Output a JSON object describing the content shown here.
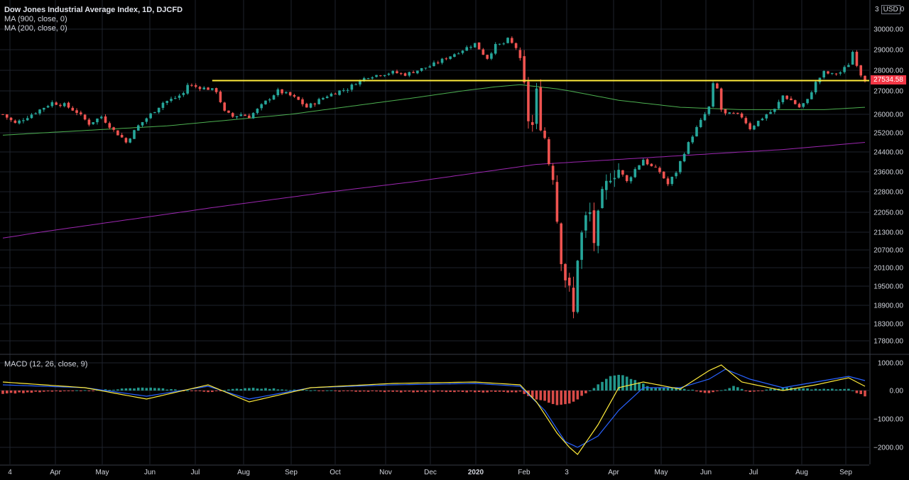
{
  "header": {
    "title": "Dow Jones Industrial Average Index, 1D, DJCFD",
    "ma1_label": "MA (900, close, 0)",
    "ma2_label": "MA (200, close, 0)",
    "macd_label": "MACD (12, 26, close, 9)",
    "currency_prefix": "3",
    "currency": "USD",
    "currency_suffix": "0"
  },
  "last_price": "27534.58",
  "colors": {
    "up": "#26a69a",
    "down": "#ef5350",
    "ma200": "#4caf50",
    "ma900": "#9c27b0",
    "resistance": "#ffeb3b",
    "macd": "#2962ff",
    "signal": "#ffeb3b",
    "hist_pos": "#26a69a",
    "hist_neg": "#ef5350"
  },
  "chart_data": {
    "type": "candlestick",
    "price_axis": {
      "ticks": [
        30000,
        29000,
        28000,
        27000,
        26000,
        25200,
        24400,
        23600,
        22800,
        22050,
        21300,
        20700,
        20100,
        19500,
        18900,
        18300,
        17800
      ],
      "labels": [
        "30000.00",
        "29000.00",
        "28000.00",
        "27000.00",
        "26000.00",
        "25200.00",
        "24400.00",
        "23600.00",
        "22800.00",
        "22050.00",
        "21300.00",
        "20700.00",
        "20100.00",
        "19500.00",
        "18900.00",
        "18300.00",
        "17800.00"
      ]
    },
    "time_axis": {
      "labels": [
        "4",
        "Apr",
        "May",
        "Jun",
        "Jul",
        "Aug",
        "Sep",
        "Oct",
        "Nov",
        "Dec",
        "2020",
        "Feb",
        "3",
        "Apr",
        "May",
        "Jun",
        "Jul",
        "Aug",
        "Sep"
      ],
      "bold": [
        false,
        false,
        false,
        false,
        false,
        false,
        false,
        false,
        false,
        false,
        true,
        false,
        false,
        false,
        false,
        false,
        false,
        false,
        false
      ]
    },
    "close_path": [
      [
        0,
        26000
      ],
      [
        3,
        25600
      ],
      [
        6,
        25900
      ],
      [
        9,
        26200
      ],
      [
        12,
        26500
      ],
      [
        15,
        26400
      ],
      [
        18,
        26100
      ],
      [
        21,
        25600
      ],
      [
        24,
        25900
      ],
      [
        27,
        25300
      ],
      [
        29,
        25000
      ],
      [
        30,
        24800
      ],
      [
        33,
        25500
      ],
      [
        36,
        26000
      ],
      [
        39,
        26500
      ],
      [
        42,
        26700
      ],
      [
        44,
        26900
      ],
      [
        45,
        27300
      ],
      [
        47,
        27200
      ],
      [
        50,
        27100
      ],
      [
        52,
        27000
      ],
      [
        54,
        26100
      ],
      [
        56,
        25900
      ],
      [
        58,
        26000
      ],
      [
        60,
        25900
      ],
      [
        62,
        26200
      ],
      [
        65,
        26700
      ],
      [
        67,
        27000
      ],
      [
        70,
        26800
      ],
      [
        72,
        26600
      ],
      [
        74,
        26300
      ],
      [
        76,
        26500
      ],
      [
        79,
        26800
      ],
      [
        82,
        27000
      ],
      [
        84,
        27100
      ],
      [
        86,
        27400
      ],
      [
        89,
        27700
      ],
      [
        92,
        27800
      ],
      [
        95,
        27900
      ],
      [
        98,
        27800
      ],
      [
        101,
        28000
      ],
      [
        104,
        28200
      ],
      [
        107,
        28500
      ],
      [
        110,
        28800
      ],
      [
        113,
        29100
      ],
      [
        115,
        29300
      ],
      [
        117,
        28800
      ],
      [
        118,
        28600
      ],
      [
        119,
        28900
      ],
      [
        120,
        29200
      ],
      [
        122,
        29300
      ],
      [
        123,
        29500
      ],
      [
        124,
        29300
      ],
      [
        125,
        29100
      ],
      [
        126,
        28300
      ],
      [
        127,
        27200
      ],
      [
        128,
        25800
      ],
      [
        129,
        25500
      ],
      [
        130,
        26900
      ],
      [
        131,
        25600
      ],
      [
        132,
        25000
      ],
      [
        133,
        24000
      ],
      [
        134,
        23500
      ],
      [
        135,
        21800
      ],
      [
        136,
        20500
      ],
      [
        137,
        19800
      ],
      [
        138,
        19300
      ],
      [
        139,
        18600
      ],
      [
        140,
        20500
      ],
      [
        141,
        21200
      ],
      [
        142,
        21800
      ],
      [
        143,
        22000
      ],
      [
        144,
        21000
      ],
      [
        145,
        21800
      ],
      [
        146,
        22600
      ],
      [
        148,
        23500
      ],
      [
        150,
        23700
      ],
      [
        152,
        23200
      ],
      [
        154,
        23700
      ],
      [
        156,
        24100
      ],
      [
        158,
        23800
      ],
      [
        160,
        23600
      ],
      [
        162,
        23100
      ],
      [
        164,
        23600
      ],
      [
        166,
        24400
      ],
      [
        168,
        25100
      ],
      [
        170,
        25700
      ],
      [
        172,
        26300
      ],
      [
        173,
        27300
      ],
      [
        174,
        27100
      ],
      [
        175,
        26200
      ],
      [
        176,
        26000
      ],
      [
        178,
        26000
      ],
      [
        180,
        25900
      ],
      [
        182,
        25400
      ],
      [
        184,
        25700
      ],
      [
        186,
        26000
      ],
      [
        188,
        26200
      ],
      [
        190,
        26800
      ],
      [
        192,
        26600
      ],
      [
        194,
        26300
      ],
      [
        196,
        26600
      ],
      [
        198,
        27400
      ],
      [
        200,
        27900
      ],
      [
        202,
        27800
      ],
      [
        204,
        27900
      ],
      [
        206,
        28300
      ],
      [
        207,
        28900
      ],
      [
        208,
        28300
      ],
      [
        209,
        27800
      ],
      [
        210,
        27534
      ]
    ],
    "ma200_path": [
      [
        0,
        25100
      ],
      [
        40,
        25500
      ],
      [
        70,
        26000
      ],
      [
        100,
        26700
      ],
      [
        120,
        27200
      ],
      [
        126,
        27300
      ],
      [
        135,
        27100
      ],
      [
        150,
        26600
      ],
      [
        165,
        26300
      ],
      [
        180,
        26200
      ],
      [
        200,
        26200
      ],
      [
        210,
        26300
      ]
    ],
    "ma900_path": [
      [
        0,
        21100
      ],
      [
        50,
        22200
      ],
      [
        100,
        23200
      ],
      [
        130,
        23900
      ],
      [
        160,
        24200
      ],
      [
        190,
        24500
      ],
      [
        210,
        24800
      ]
    ],
    "resistance_level": 27500,
    "resistance_range": [
      51,
      210
    ],
    "macd": {
      "ticks": [
        1000,
        0,
        -1000,
        -2000
      ],
      "labels": [
        "1000.00",
        "0.00",
        "−1000.00",
        "−2000.00"
      ],
      "macd_path": [
        [
          0,
          200
        ],
        [
          20,
          100
        ],
        [
          35,
          -200
        ],
        [
          50,
          150
        ],
        [
          60,
          -300
        ],
        [
          75,
          100
        ],
        [
          95,
          200
        ],
        [
          115,
          250
        ],
        [
          126,
          150
        ],
        [
          132,
          -700
        ],
        [
          137,
          -1800
        ],
        [
          140,
          -2000
        ],
        [
          145,
          -1600
        ],
        [
          150,
          -700
        ],
        [
          156,
          100
        ],
        [
          165,
          100
        ],
        [
          172,
          400
        ],
        [
          176,
          750
        ],
        [
          182,
          400
        ],
        [
          190,
          100
        ],
        [
          198,
          300
        ],
        [
          206,
          500
        ],
        [
          210,
          350
        ]
      ],
      "signal_path": [
        [
          0,
          300
        ],
        [
          20,
          100
        ],
        [
          35,
          -300
        ],
        [
          50,
          200
        ],
        [
          60,
          -400
        ],
        [
          75,
          100
        ],
        [
          95,
          250
        ],
        [
          115,
          300
        ],
        [
          126,
          200
        ],
        [
          130,
          -400
        ],
        [
          135,
          -1500
        ],
        [
          138,
          -2000
        ],
        [
          140,
          -2250
        ],
        [
          145,
          -1200
        ],
        [
          150,
          100
        ],
        [
          156,
          300
        ],
        [
          165,
          50
        ],
        [
          172,
          700
        ],
        [
          175,
          900
        ],
        [
          180,
          300
        ],
        [
          190,
          0
        ],
        [
          198,
          200
        ],
        [
          206,
          450
        ],
        [
          210,
          150
        ]
      ],
      "hist_path": [
        [
          0,
          -100
        ],
        [
          20,
          0
        ],
        [
          35,
          100
        ],
        [
          50,
          -50
        ],
        [
          60,
          100
        ],
        [
          75,
          0
        ],
        [
          95,
          -50
        ],
        [
          115,
          -50
        ],
        [
          126,
          -50
        ],
        [
          130,
          -300
        ],
        [
          135,
          -500
        ],
        [
          138,
          -450
        ],
        [
          140,
          -300
        ],
        [
          144,
          100
        ],
        [
          148,
          500
        ],
        [
          151,
          550
        ],
        [
          154,
          350
        ],
        [
          158,
          100
        ],
        [
          165,
          100
        ],
        [
          172,
          -100
        ],
        [
          176,
          50
        ],
        [
          178,
          150
        ],
        [
          182,
          -50
        ],
        [
          190,
          100
        ],
        [
          198,
          50
        ],
        [
          206,
          50
        ],
        [
          210,
          -200
        ]
      ]
    }
  }
}
